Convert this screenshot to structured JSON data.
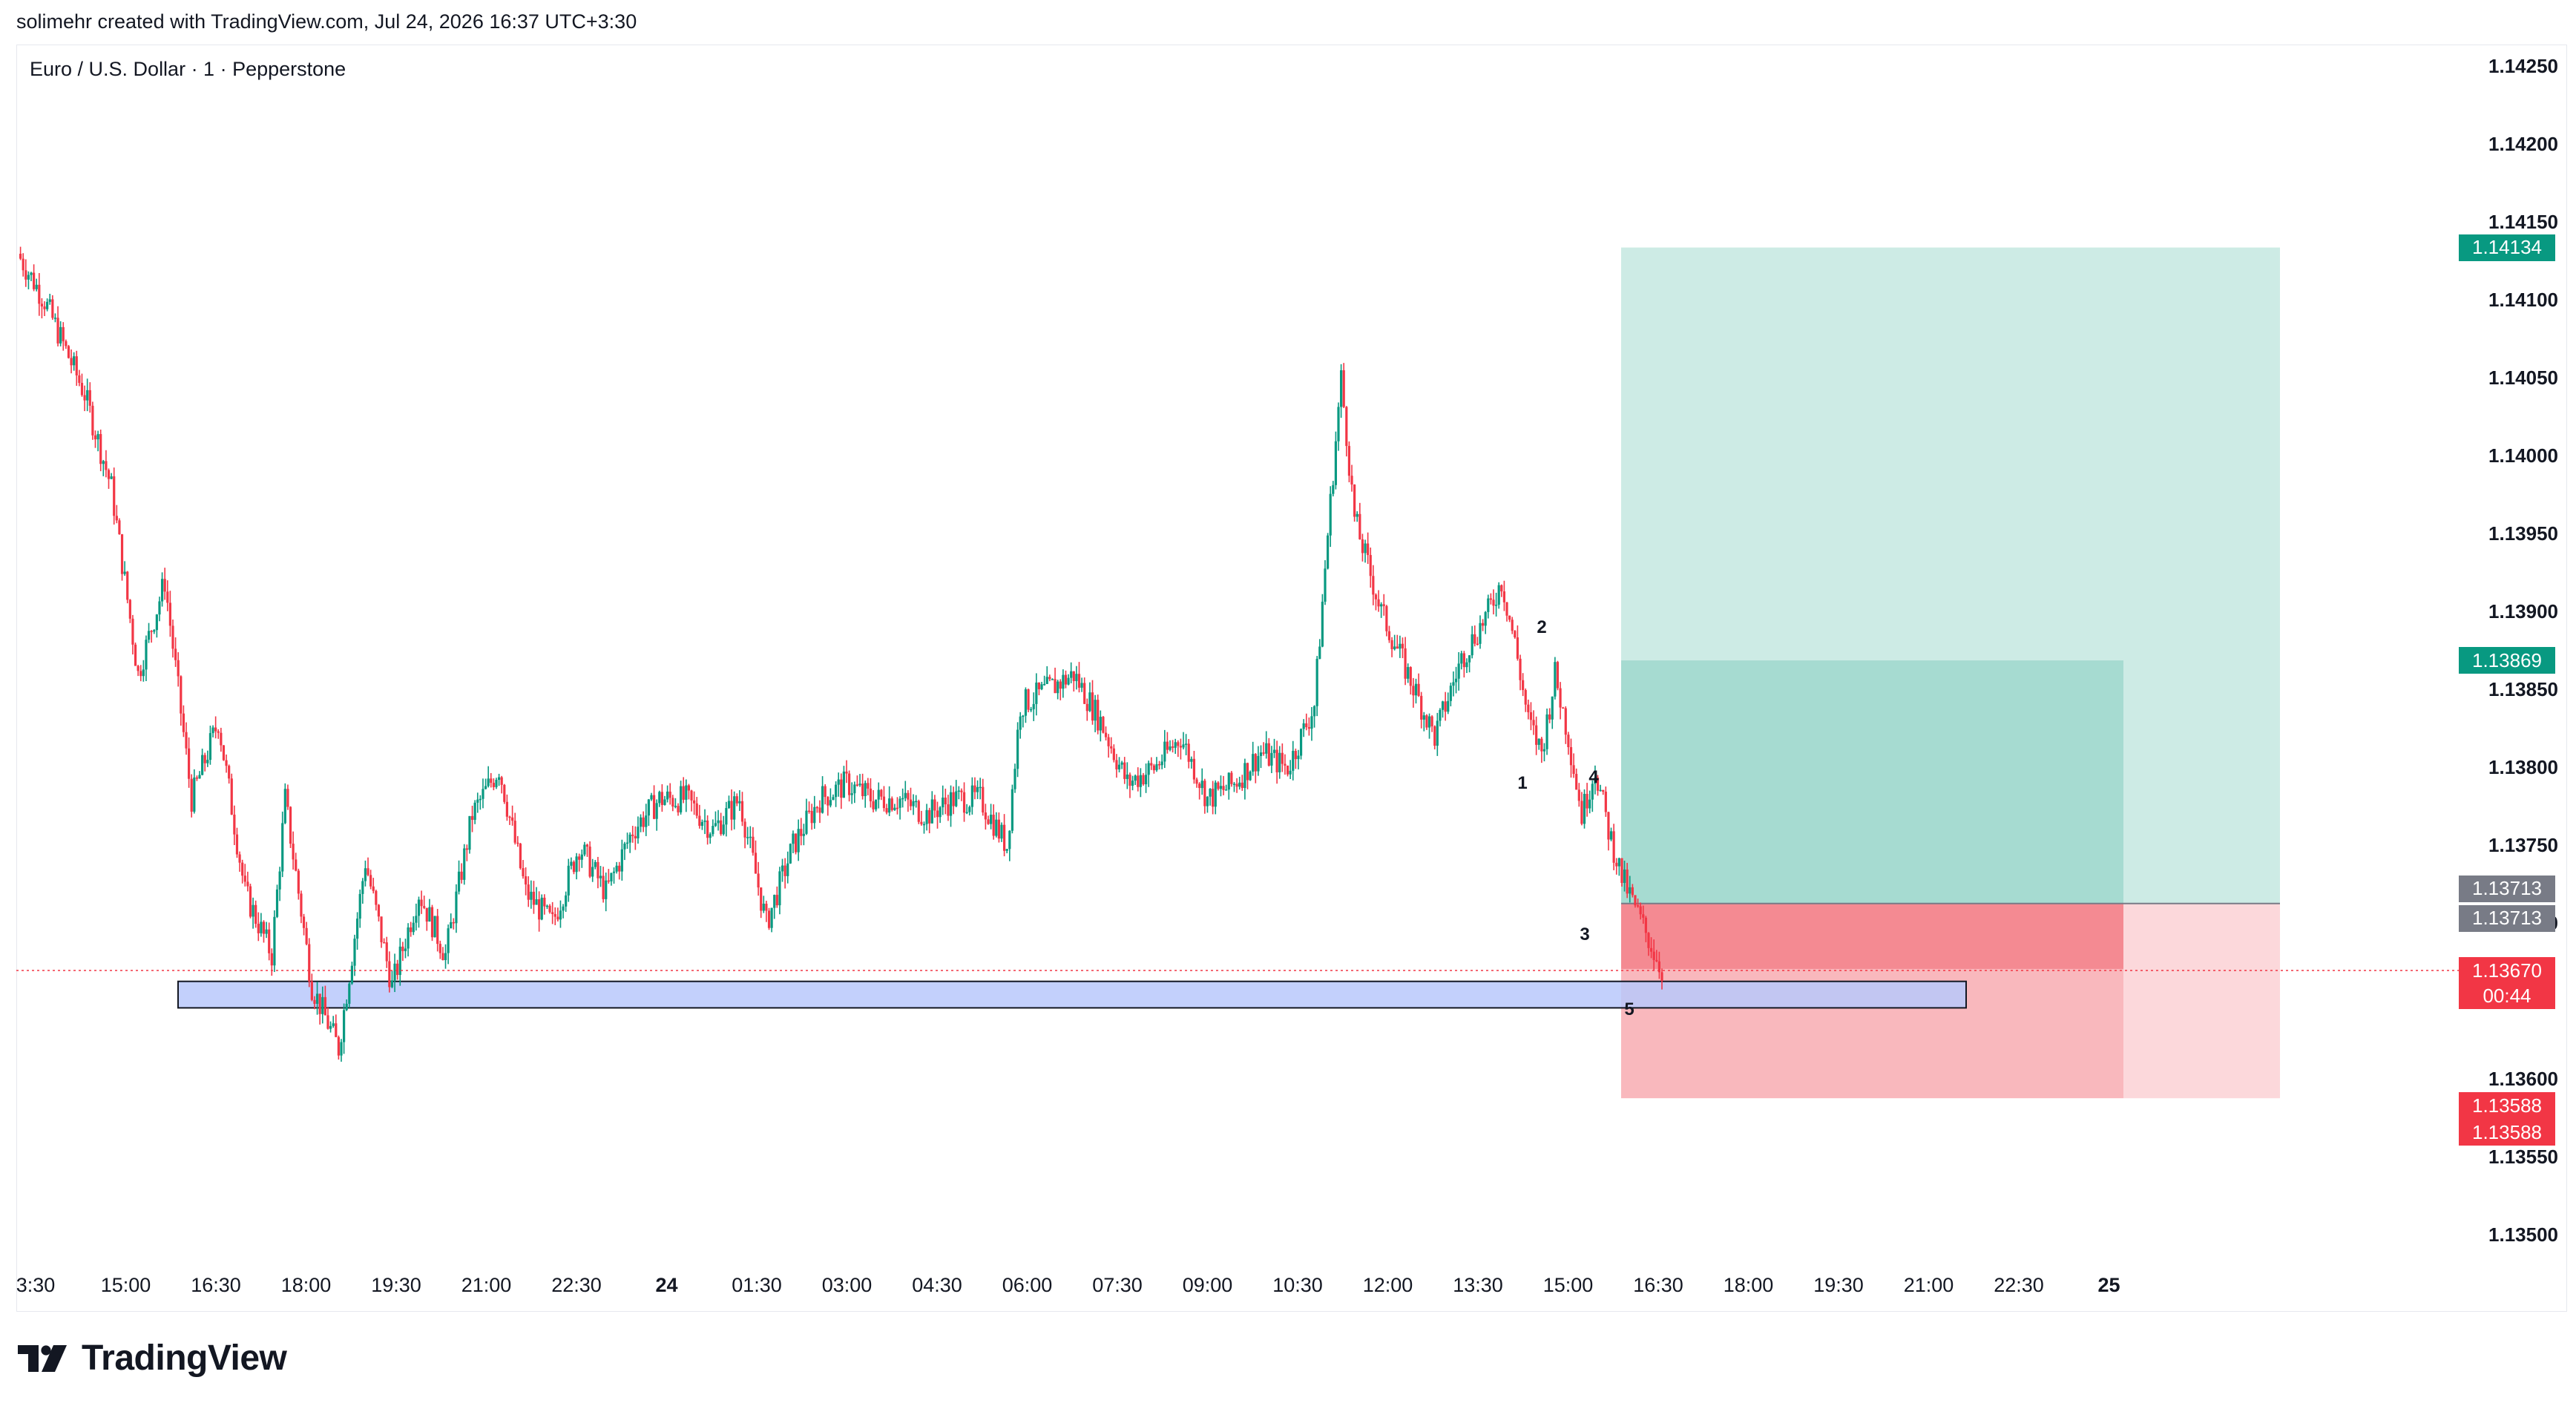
{
  "header": {
    "attribution": "solimehr created with TradingView.com, Jul 24, 2026 16:37 UTC+3:30",
    "symbol": "Euro / U.S. Dollar · 1 · Pepperstone"
  },
  "footer": {
    "brand": "TradingView"
  },
  "colors": {
    "up": "#089981",
    "down": "#f23645",
    "target_zone": "#cdebe5",
    "target_inner": "#a6dbd1",
    "stop_zone": "#f9b8bd",
    "stop_inner": "#f48a92",
    "stop_outer": "#fcd8db",
    "support_box": "#b9c8fb",
    "price_line": "#f23645"
  },
  "chart_data": {
    "type": "candlestick",
    "title": "Euro / U.S. Dollar · 1 · Pepperstone",
    "ylim": [
      1.1345,
      1.1427
    ],
    "y_ticks": [
      "1.14250",
      "1.14200",
      "1.14150",
      "1.14100",
      "1.14050",
      "1.14000",
      "1.13950",
      "1.13900",
      "1.13850",
      "1.13800",
      "1.13750",
      "1.13700",
      "1.13600",
      "1.13550",
      "1.13500"
    ],
    "x_ticks": [
      "3:30",
      "15:00",
      "16:30",
      "18:00",
      "19:30",
      "21:00",
      "22:30",
      "24",
      "01:30",
      "03:00",
      "04:30",
      "06:00",
      "07:30",
      "09:00",
      "10:30",
      "12:00",
      "13:30",
      "15:00",
      "16:30",
      "18:00",
      "19:30",
      "21:00",
      "22:30",
      "25"
    ],
    "x_ticks_bold": [
      "24",
      "25"
    ],
    "price_path": [
      [
        0,
        1.1413
      ],
      [
        2,
        1.141
      ],
      [
        5,
        1.1404
      ],
      [
        7,
        1.1398
      ],
      [
        9,
        1.1386
      ],
      [
        11,
        1.1392
      ],
      [
        13,
        1.1378
      ],
      [
        15,
        1.1383
      ],
      [
        17,
        1.1372
      ],
      [
        19,
        1.1368
      ],
      [
        20,
        1.1378
      ],
      [
        22,
        1.1366
      ],
      [
        24,
        1.1362
      ],
      [
        26,
        1.1374
      ],
      [
        28,
        1.1366
      ],
      [
        30,
        1.1372
      ],
      [
        32,
        1.1368
      ],
      [
        34,
        1.1377
      ],
      [
        36,
        1.138
      ],
      [
        38,
        1.1372
      ],
      [
        40,
        1.137
      ],
      [
        42,
        1.1375
      ],
      [
        44,
        1.1372
      ],
      [
        46,
        1.1376
      ],
      [
        48,
        1.1378
      ],
      [
        50,
        1.1378
      ],
      [
        52,
        1.1376
      ],
      [
        54,
        1.1378
      ],
      [
        56,
        1.137
      ],
      [
        58,
        1.1375
      ],
      [
        60,
        1.1378
      ],
      [
        62,
        1.1379
      ],
      [
        64,
        1.1378
      ],
      [
        66,
        1.1378
      ],
      [
        68,
        1.1377
      ],
      [
        70,
        1.1378
      ],
      [
        72,
        1.1378
      ],
      [
        74,
        1.1375
      ],
      [
        75,
        1.1384
      ],
      [
        77,
        1.1385
      ],
      [
        79,
        1.1386
      ],
      [
        81,
        1.1383
      ],
      [
        83,
        1.1379
      ],
      [
        85,
        1.138
      ],
      [
        87,
        1.1382
      ],
      [
        89,
        1.1378
      ],
      [
        91,
        1.1379
      ],
      [
        93,
        1.1381
      ],
      [
        95,
        1.138
      ],
      [
        97,
        1.1384
      ],
      [
        98,
        1.1395
      ],
      [
        99,
        1.1405
      ],
      [
        100,
        1.1396
      ],
      [
        102,
        1.139
      ],
      [
        104,
        1.1386
      ],
      [
        106,
        1.1382
      ],
      [
        108,
        1.1387
      ],
      [
        110,
        1.139
      ],
      [
        111,
        1.1392
      ],
      [
        112,
        1.1388
      ],
      [
        113,
        1.1383
      ],
      [
        114,
        1.1381
      ],
      [
        115,
        1.1386
      ],
      [
        116,
        1.1382
      ],
      [
        117,
        1.1377
      ],
      [
        118,
        1.138
      ],
      [
        119,
        1.1376
      ],
      [
        120,
        1.1373
      ],
      [
        121,
        1.1371
      ],
      [
        122,
        1.1369
      ],
      [
        123,
        1.1367
      ]
    ],
    "last_price": "1.13670",
    "countdown": "00:44",
    "price_tags": [
      {
        "value": "1.14134",
        "color": "#089981"
      },
      {
        "value": "1.13869",
        "color": "#089981"
      },
      {
        "value": "1.13713",
        "color": "#787b86"
      },
      {
        "value": "1.13713",
        "color": "#787b86"
      },
      {
        "value": "1.13588",
        "color": "#f23645"
      },
      {
        "value": "1.13588",
        "color": "#f23645"
      }
    ],
    "annotations": [
      {
        "text": "1",
        "price": 1.1379
      },
      {
        "text": "2",
        "price": 1.1389
      },
      {
        "text": "3",
        "price": 1.13693
      },
      {
        "text": "4",
        "price": 1.13794
      },
      {
        "text": "5",
        "price": 1.13645
      }
    ],
    "positions": {
      "entry": 1.13713,
      "take_profit_1": 1.14134,
      "take_profit_2": 1.13869,
      "stop_loss": 1.13588
    },
    "support_zone": [
      1.13646,
      1.13663
    ]
  }
}
